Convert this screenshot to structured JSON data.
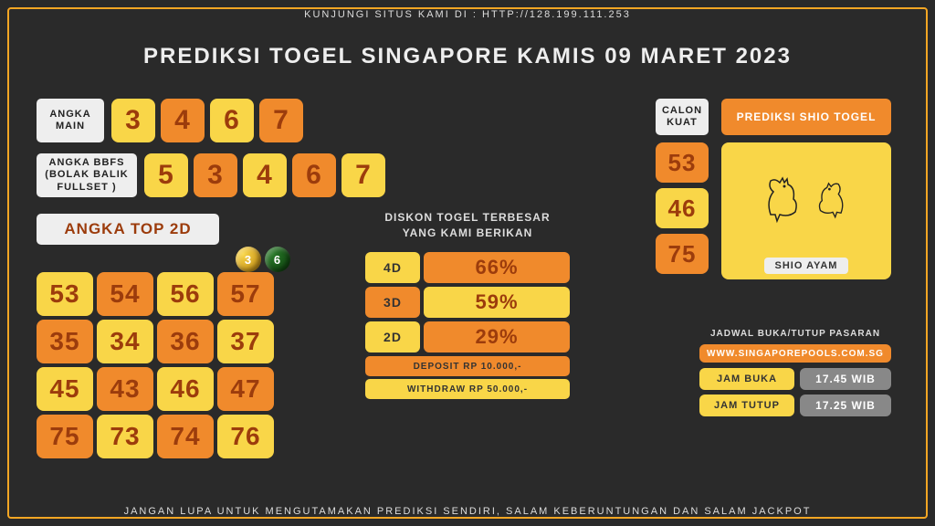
{
  "colors": {
    "yellow": "#f9d648",
    "orange": "#f08a2c",
    "brown_text": "#9c3c0c",
    "bg": "#2a2a2a",
    "border": "#f5a623",
    "light": "#eee",
    "grey": "#888888"
  },
  "top_banner": "KUNJUNGI SITUS KAMI DI : HTTP://128.199.111.253",
  "title": "PREDIKSI TOGEL SINGAPORE KAMIS 09 MARET 2023",
  "angka_main": {
    "label": "ANGKA MAIN",
    "items": [
      {
        "n": "3",
        "c": "yellow"
      },
      {
        "n": "4",
        "c": "orange"
      },
      {
        "n": "6",
        "c": "yellow"
      },
      {
        "n": "7",
        "c": "orange"
      }
    ]
  },
  "bbfs": {
    "label": "ANGKA BBFS (BOLAK BALIK FULLSET )",
    "items": [
      {
        "n": "5",
        "c": "yellow"
      },
      {
        "n": "3",
        "c": "orange"
      },
      {
        "n": "4",
        "c": "yellow"
      },
      {
        "n": "6",
        "c": "orange"
      },
      {
        "n": "7",
        "c": "yellow"
      }
    ]
  },
  "top2d": {
    "label": "ANGKA TOP 2D",
    "items": [
      {
        "n": "53",
        "c": "yellow"
      },
      {
        "n": "54",
        "c": "orange"
      },
      {
        "n": "56",
        "c": "yellow"
      },
      {
        "n": "57",
        "c": "orange"
      },
      {
        "n": "35",
        "c": "orange"
      },
      {
        "n": "34",
        "c": "yellow"
      },
      {
        "n": "36",
        "c": "orange"
      },
      {
        "n": "37",
        "c": "yellow"
      },
      {
        "n": "45",
        "c": "yellow"
      },
      {
        "n": "43",
        "c": "orange"
      },
      {
        "n": "46",
        "c": "yellow"
      },
      {
        "n": "47",
        "c": "orange"
      },
      {
        "n": "75",
        "c": "orange"
      },
      {
        "n": "73",
        "c": "yellow"
      },
      {
        "n": "74",
        "c": "orange"
      },
      {
        "n": "76",
        "c": "yellow"
      }
    ]
  },
  "diskon": {
    "title_l1": "DISKON TOGEL TERBESAR",
    "title_l2": "YANG KAMI BERIKAN",
    "rows": [
      {
        "label": "4D",
        "lc": "yellow",
        "val": "66%",
        "vc": "orange"
      },
      {
        "label": "3D",
        "lc": "orange",
        "val": "59%",
        "vc": "yellow"
      },
      {
        "label": "2D",
        "lc": "yellow",
        "val": "29%",
        "vc": "orange"
      }
    ],
    "deposit": "DEPOSIT RP 10.000,-",
    "withdraw": "WITHDRAW RP 50.000,-"
  },
  "calon_kuat": {
    "label": "CALON KUAT",
    "items": [
      {
        "n": "53",
        "c": "orange"
      },
      {
        "n": "46",
        "c": "yellow"
      },
      {
        "n": "75",
        "c": "orange"
      }
    ]
  },
  "shio": {
    "header": "PREDIKSI SHIO TOGEL",
    "label": "SHIO AYAM"
  },
  "schedule": {
    "title": "JADWAL BUKA/TUTUP PASARAN",
    "site": "WWW.SINGAPOREPOOLS.COM.SG",
    "rows": [
      {
        "l": "JAM BUKA",
        "v": "17.45 WIB"
      },
      {
        "l": "JAM TUTUP",
        "v": "17.25 WIB"
      }
    ]
  },
  "balls": [
    "3",
    "6"
  ],
  "footer": "JANGAN LUPA UNTUK MENGUTAMAKAN PREDIKSI SENDIRI, SALAM KEBERUNTUNGAN DAN SALAM JACKPOT"
}
